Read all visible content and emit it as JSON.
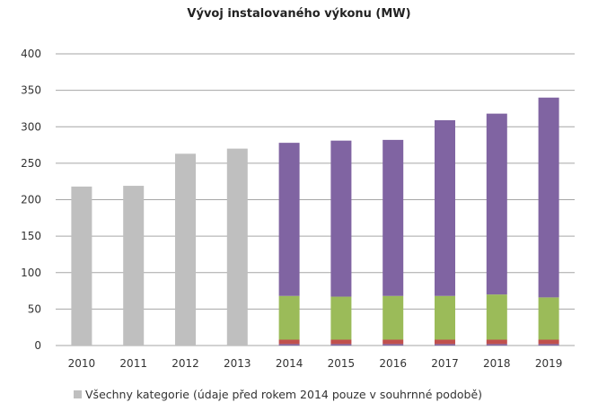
{
  "chart_data": {
    "type": "bar",
    "stacked": true,
    "title": "Vývoj instalovaného výkonu (MW)",
    "xlabel": "",
    "ylabel": "",
    "ylim": [
      0,
      400
    ],
    "yticks": [
      0,
      50,
      100,
      150,
      200,
      250,
      300,
      350,
      400
    ],
    "grid": true,
    "legend_position": "bottom",
    "categories": [
      "2010",
      "2011",
      "2012",
      "2013",
      "2014",
      "2015",
      "2016",
      "2017",
      "2018",
      "2019"
    ],
    "series": [
      {
        "name": "Všechny kategorie (údaje před rokem 2014 pouze v souhrnné podobě)",
        "color": "#bfbfbf",
        "values": [
          218,
          219,
          263,
          270,
          0,
          0,
          0,
          0,
          0,
          0
        ]
      },
      {
        "color": "#7f64a2",
        "values": [
          0,
          0,
          0,
          0,
          2,
          2,
          2,
          2,
          2,
          2
        ],
        "stack_order": 1
      },
      {
        "color": "#c0504d",
        "values": [
          0,
          0,
          0,
          0,
          6,
          6,
          6,
          6,
          6,
          6
        ]
      },
      {
        "color": "#9bbb59",
        "values": [
          0,
          0,
          0,
          0,
          60,
          59,
          60,
          60,
          62,
          58
        ]
      },
      {
        "color": "#8064a2",
        "values": [
          0,
          0,
          0,
          0,
          210,
          214,
          214,
          241,
          248,
          274
        ]
      }
    ]
  }
}
